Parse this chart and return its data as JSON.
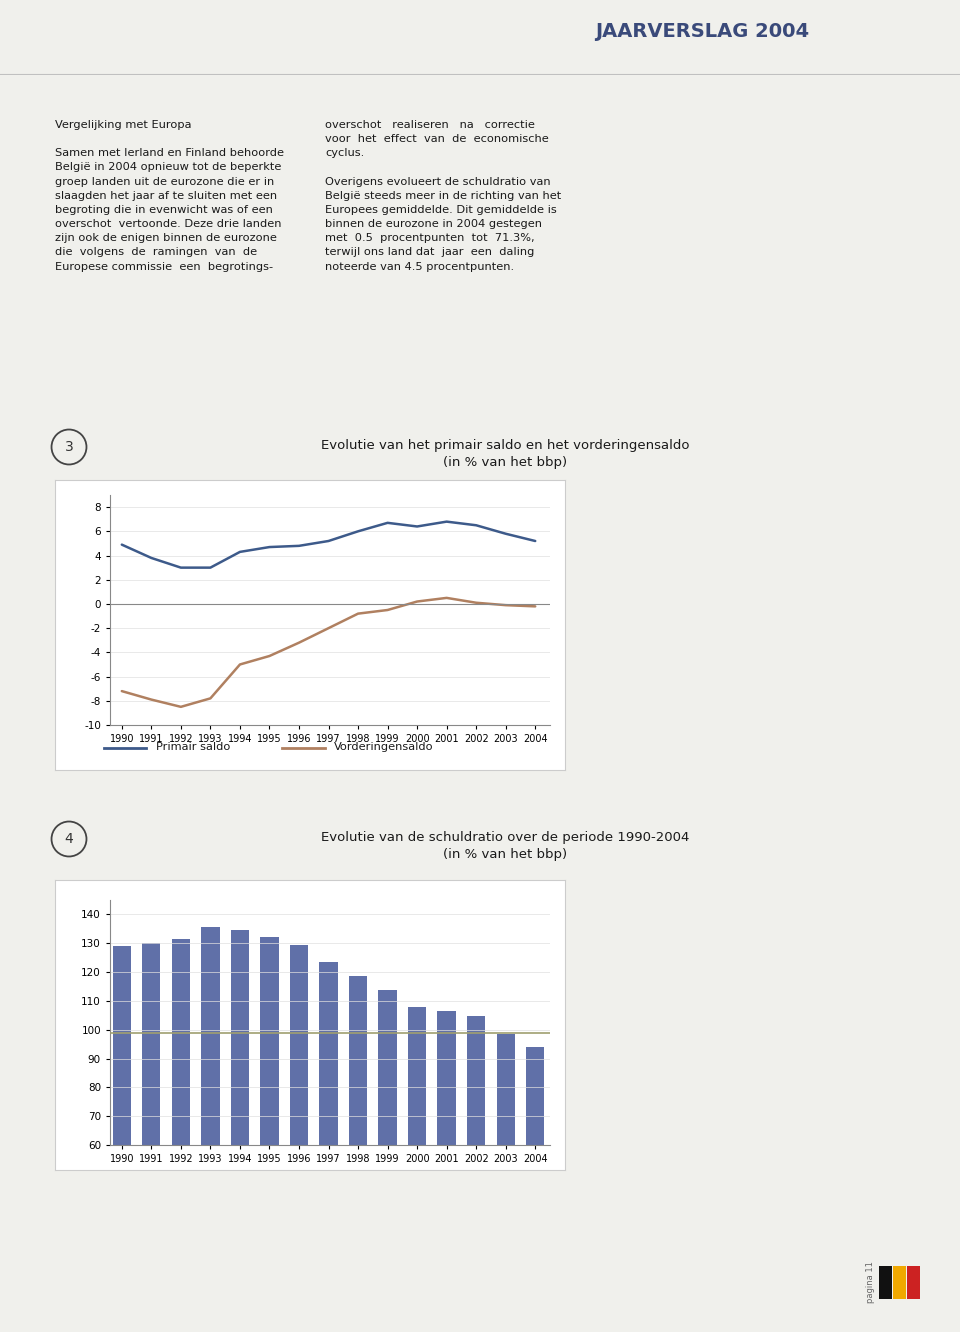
{
  "page_title": "JAARVERSLAG 2004",
  "page_bg": "#f0f0ec",
  "header_bg": "#e8e8e4",
  "chart_area_bg": "#ffffff",
  "title_color": "#3a4a7a",
  "text_color": "#1a1a1a",
  "chart3_title_line1": "Evolutie van het primair saldo en het vorderingensaldo",
  "chart3_title_line2": "(in % van het bbp)",
  "chart3_years": [
    1990,
    1991,
    1992,
    1993,
    1994,
    1995,
    1996,
    1997,
    1998,
    1999,
    2000,
    2001,
    2002,
    2003,
    2004
  ],
  "chart3_primair": [
    4.9,
    3.8,
    3.0,
    3.0,
    4.3,
    4.7,
    4.8,
    5.2,
    6.0,
    6.7,
    6.4,
    6.8,
    6.5,
    5.8,
    5.2
  ],
  "chart3_vorderingen": [
    -7.2,
    -7.9,
    -8.5,
    -7.8,
    -5.0,
    -4.3,
    -3.2,
    -2.0,
    -0.8,
    -0.5,
    0.2,
    0.5,
    0.1,
    -0.1,
    -0.2
  ],
  "chart3_primair_color": "#3d5a8a",
  "chart3_vorderingen_color": "#b08060",
  "chart3_ylim": [
    -10,
    9
  ],
  "chart3_yticks": [
    -10,
    -8,
    -6,
    -4,
    -2,
    0,
    2,
    4,
    6,
    8
  ],
  "chart4_title_line1": "Evolutie van de schuldratio over de periode 1990-2004",
  "chart4_title_line2": "(in % van het bbp)",
  "chart4_years": [
    1990,
    1991,
    1992,
    1993,
    1994,
    1995,
    1996,
    1997,
    1998,
    1999,
    2000,
    2001,
    2002,
    2003,
    2004
  ],
  "chart4_values": [
    128.9,
    130.2,
    131.6,
    135.6,
    134.5,
    132.1,
    129.4,
    123.4,
    118.5,
    113.9,
    107.8,
    106.6,
    104.6,
    98.6,
    94.0
  ],
  "chart4_bar_color": "#6070a8",
  "chart4_refline_value": 99.0,
  "chart4_refline_color": "#a0a070",
  "chart4_ylim": [
    60,
    145
  ],
  "chart4_yticks": [
    60,
    70,
    80,
    90,
    100,
    110,
    120,
    130,
    140
  ],
  "legend3_primair": "Primair saldo",
  "legend3_vorderingen": "Vorderingensaldo"
}
